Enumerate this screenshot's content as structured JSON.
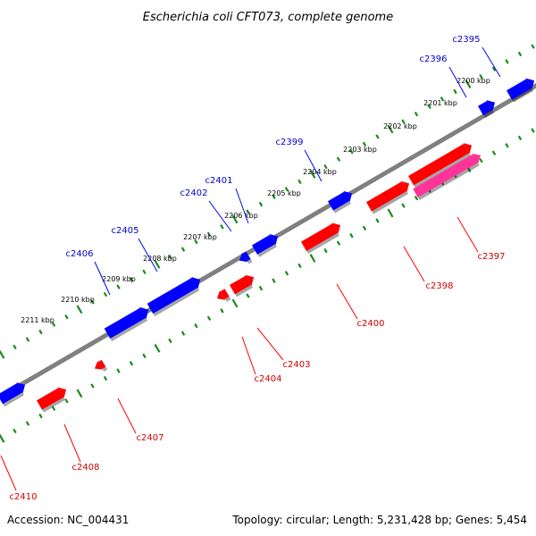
{
  "title": "Escherichia coli CFT073, complete genome",
  "footer": {
    "accession": "Accession: NC_004431",
    "summary": "Topology: circular; Length: 5,231,428 bp; Genes: 5,454"
  },
  "colors": {
    "forward": "#0000ff",
    "reverse": "#ff0000",
    "rna": "#ff3399",
    "backbone": "#808080",
    "ticks": "#1a8a1a",
    "label_forward": "#0000cc",
    "label_reverse": "#cc0000"
  },
  "scale_labels": [
    "2200 kbp",
    "2201 kbp",
    "2202 kbp",
    "2203 kbp",
    "2204 kbp",
    "2205 kbp",
    "2206 kbp",
    "2207 kbp",
    "2208 kbp",
    "2209 kbp",
    "2210 kbp",
    "2211 kbp"
  ],
  "forward_genes": [
    "c2395",
    "c2396",
    "c2399",
    "c2401",
    "c2402",
    "c2405",
    "c2406"
  ],
  "reverse_genes": [
    "c2397",
    "c2398",
    "c2400",
    "c2403",
    "c2404",
    "c2407",
    "c2408",
    "c2410"
  ]
}
